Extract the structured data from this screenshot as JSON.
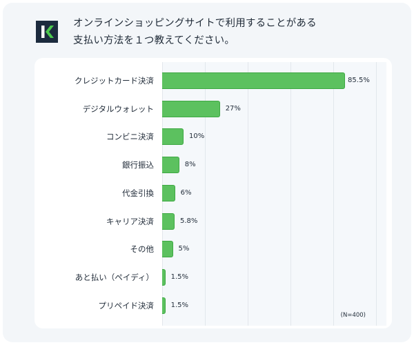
{
  "header": {
    "logo_letter": "K",
    "title_line1": "オンラインショッピングサイトで利用することがある",
    "title_line2": "支払い方法を１つ教えてください。"
  },
  "colors": {
    "bar_fill": "#5cc15f",
    "bar_border": "#3ea843",
    "logo_bg": "#1c2b3e",
    "logo_accent": "#4cc94e"
  },
  "note": "(N=400)",
  "chart_data": {
    "type": "bar",
    "orientation": "horizontal",
    "title": "オンラインショッピングサイトで利用することがある支払い方法を１つ教えてください。",
    "xlabel": "",
    "ylabel": "",
    "xlim": [
      0,
      100
    ],
    "grid": true,
    "gridlines_at": [
      0,
      20,
      40,
      60,
      80,
      100
    ],
    "categories": [
      "クレジットカード決済",
      "デジタルウォレット",
      "コンビニ決済",
      "銀行振込",
      "代金引換",
      "キャリア決済",
      "その他",
      "あと払い（ペイディ）",
      "プリペイド決済"
    ],
    "values": [
      85.5,
      27,
      10,
      8,
      6,
      5.8,
      5,
      1.5,
      1.5
    ],
    "value_labels": [
      "85.5%",
      "27%",
      "10%",
      "8%",
      "6%",
      "5.8%",
      "5%",
      "1.5%",
      "1.5%"
    ],
    "annotations": [
      "(N=400)"
    ],
    "legend": null
  }
}
